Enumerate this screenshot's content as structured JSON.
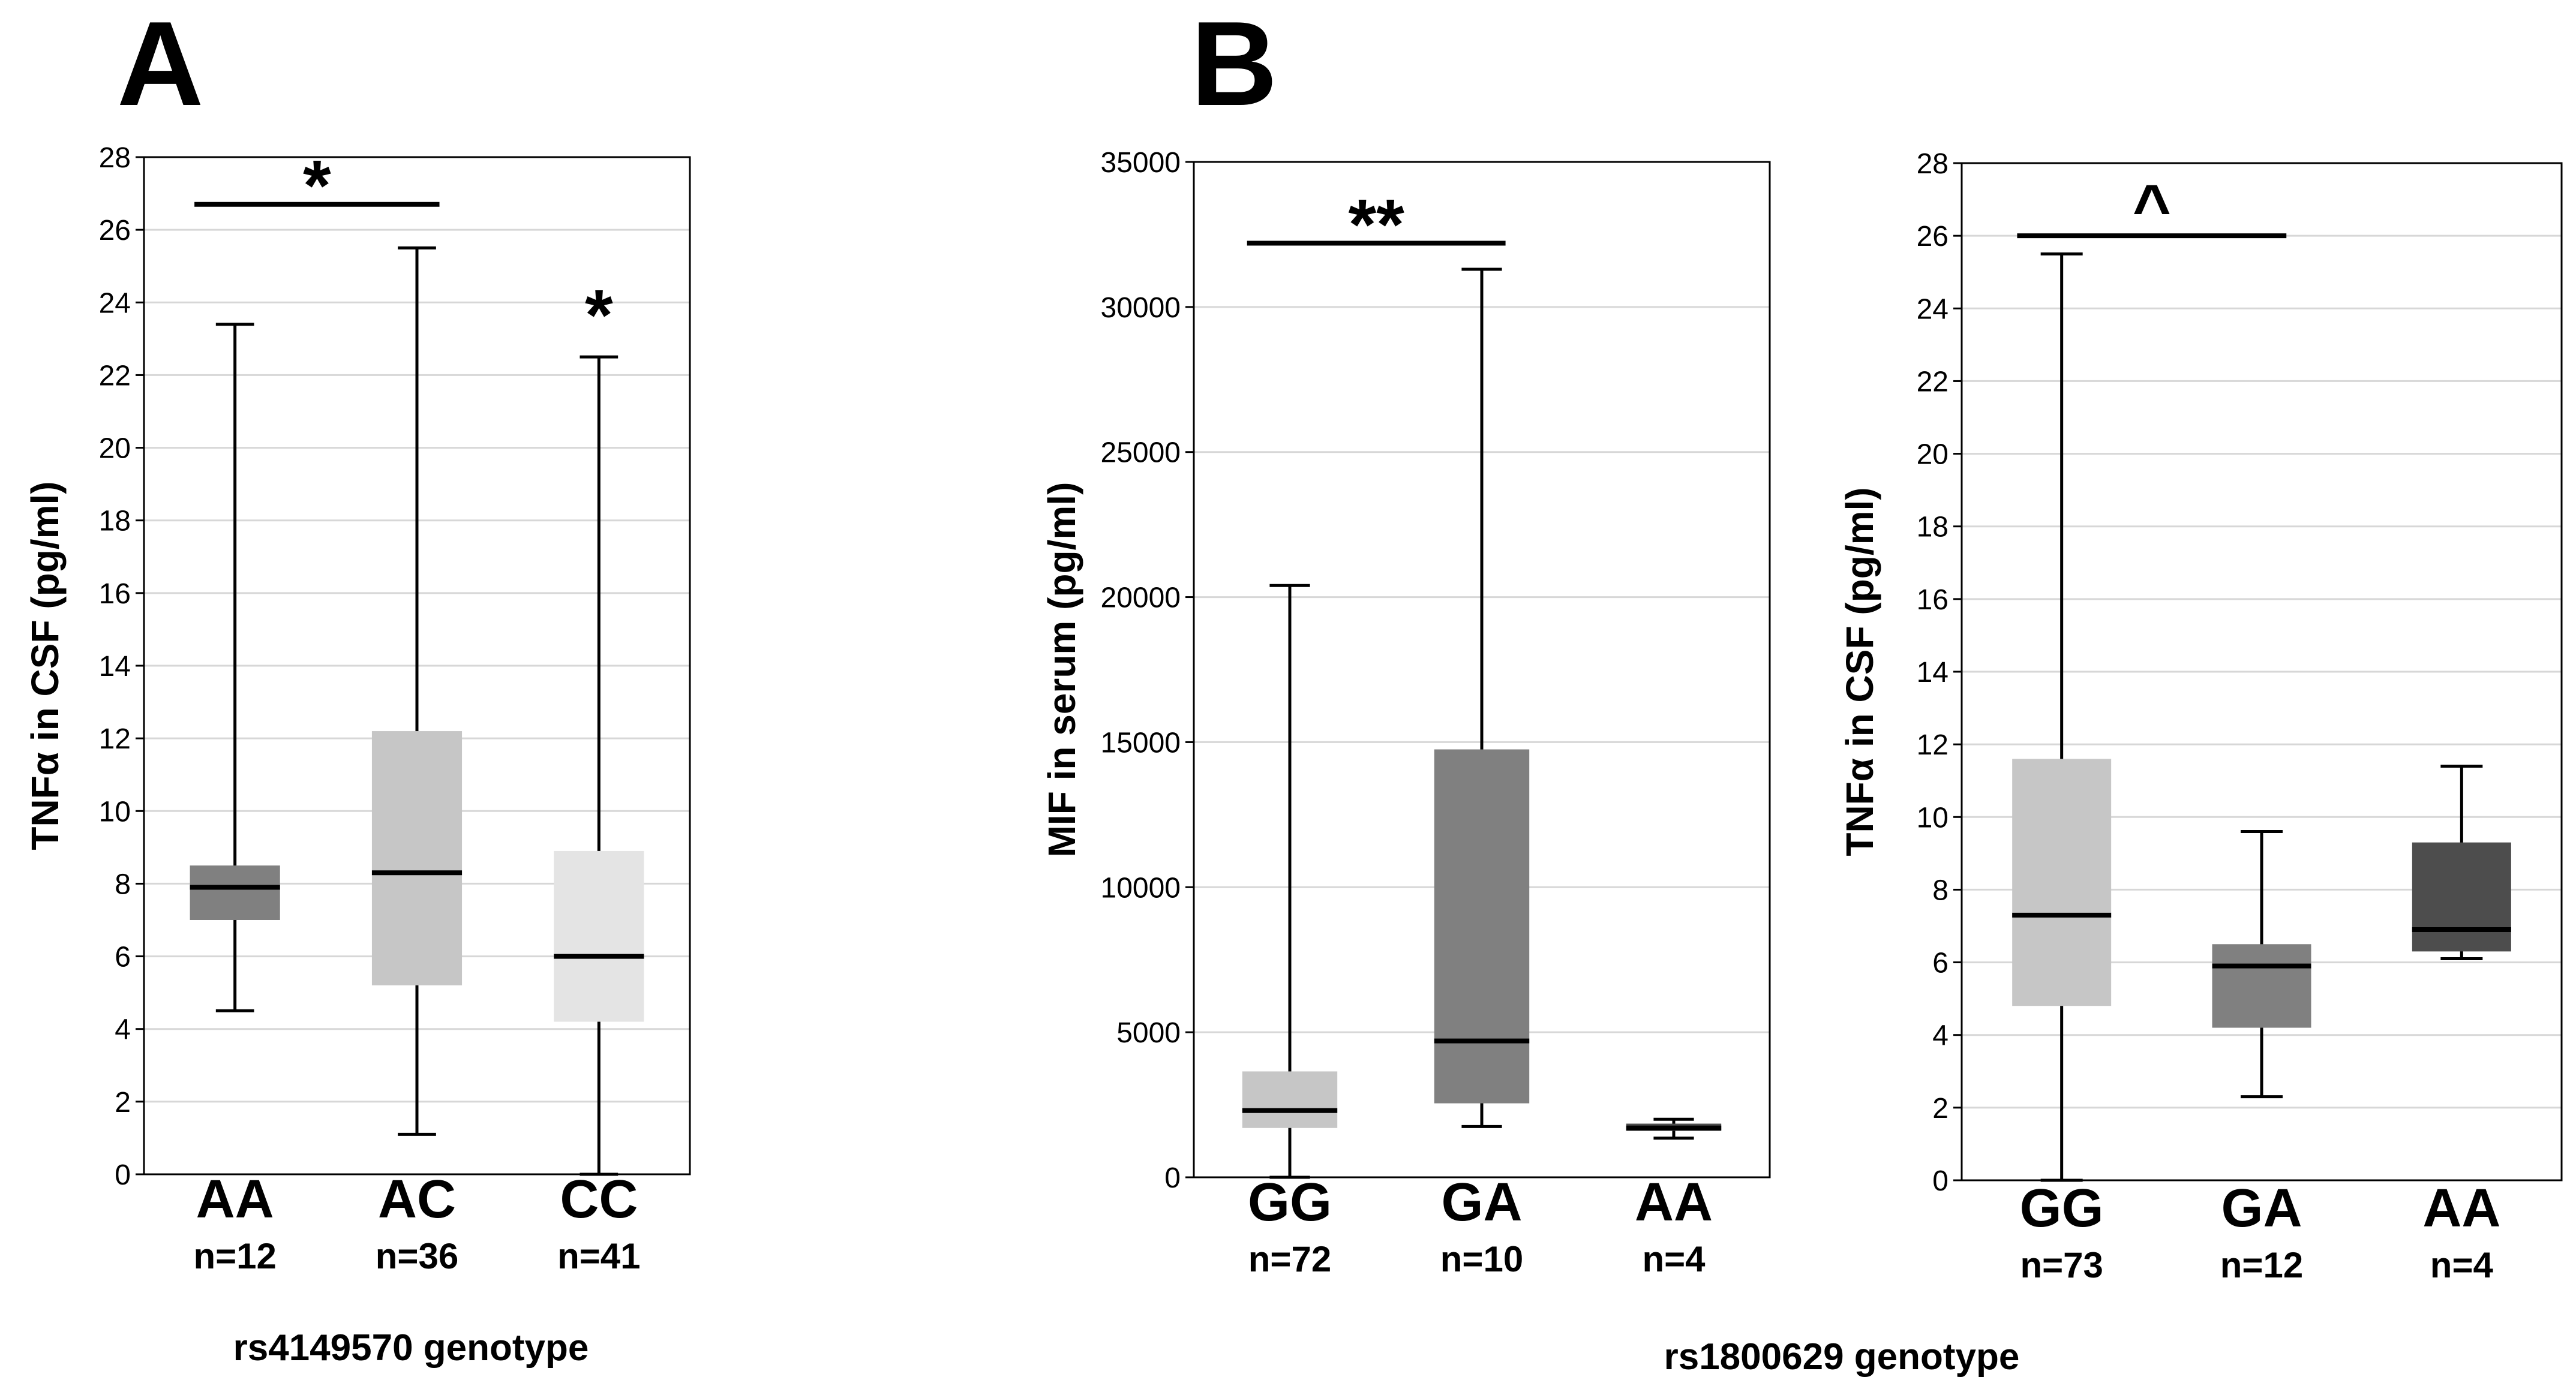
{
  "colors": {
    "light": "#c6c6c6",
    "lighter": "#e4e4e4",
    "mid": "#808080",
    "dark": "#4d4d4d",
    "grid": "#d7d7d7",
    "ink": "#000000"
  },
  "panel_labels": [
    "A",
    "B"
  ],
  "shared_xlabels": {
    "A": "rs4149570 genotype",
    "B": "rs1800629 genotype"
  },
  "chart_data": [
    {
      "type": "boxplot",
      "panel": "A",
      "ylabel": "TNFα in CSF (pg/ml)",
      "ylim": [
        0,
        28
      ],
      "yticks": [
        0,
        2,
        4,
        6,
        8,
        10,
        12,
        14,
        16,
        18,
        20,
        22,
        24,
        26,
        28
      ],
      "grid": true,
      "categories": [
        "AA",
        "AC",
        "CC"
      ],
      "n_labels": [
        "n=12",
        "n=36",
        "n=41"
      ],
      "boxes": [
        {
          "min": 4.5,
          "q1": 7.0,
          "median": 7.9,
          "q3": 8.5,
          "max": 23.4,
          "color": "mid"
        },
        {
          "min": 1.1,
          "q1": 5.2,
          "median": 8.3,
          "q3": 12.2,
          "max": 25.5,
          "color": "light"
        },
        {
          "min": 0.0,
          "q1": 4.2,
          "median": 6.0,
          "q3": 8.9,
          "max": 22.5,
          "color": "lighter"
        }
      ],
      "annotations": [
        {
          "text": "*",
          "from": 0,
          "to": 1,
          "y": 26.7
        },
        {
          "text": "*",
          "at": 2,
          "y": 23.3
        }
      ]
    },
    {
      "type": "boxplot",
      "panel": "B",
      "ylabel": "MIF in serum (pg/ml)",
      "ylim": [
        0,
        35000
      ],
      "yticks": [
        0,
        5000,
        10000,
        15000,
        20000,
        25000,
        30000,
        35000
      ],
      "grid": true,
      "categories": [
        "GG",
        "GA",
        "AA"
      ],
      "n_labels": [
        "n=72",
        "n=10",
        "n=4"
      ],
      "boxes": [
        {
          "min": 0,
          "q1": 1700,
          "median": 2300,
          "q3": 3650,
          "max": 20400,
          "color": "light"
        },
        {
          "min": 1750,
          "q1": 2550,
          "median": 4700,
          "q3": 14750,
          "max": 31300,
          "color": "mid"
        },
        {
          "min": 1350,
          "q1": 1600,
          "median": 1700,
          "q3": 1850,
          "max": 2000,
          "color": "dark"
        }
      ],
      "annotations": [
        {
          "text": "**",
          "from": 0,
          "to": 1,
          "y": 32200
        }
      ]
    },
    {
      "type": "boxplot",
      "panel": "B",
      "ylabel": "TNFα in CSF (pg/ml)",
      "ylim": [
        0,
        28
      ],
      "yticks": [
        0,
        2,
        4,
        6,
        8,
        10,
        12,
        14,
        16,
        18,
        20,
        22,
        24,
        26,
        28
      ],
      "grid": true,
      "categories": [
        "GG",
        "GA",
        "AA"
      ],
      "n_labels": [
        "n=73",
        "n=12",
        "n=4"
      ],
      "boxes": [
        {
          "min": 0.0,
          "q1": 4.8,
          "median": 7.3,
          "q3": 11.6,
          "max": 25.5,
          "color": "light"
        },
        {
          "min": 2.3,
          "q1": 4.2,
          "median": 5.9,
          "q3": 6.5,
          "max": 9.6,
          "color": "mid"
        },
        {
          "min": 6.1,
          "q1": 6.3,
          "median": 6.9,
          "q3": 9.3,
          "max": 11.4,
          "color": "dark"
        }
      ],
      "annotations": [
        {
          "text": "^",
          "from": 0,
          "to": 1,
          "y": 26.0
        }
      ]
    }
  ]
}
